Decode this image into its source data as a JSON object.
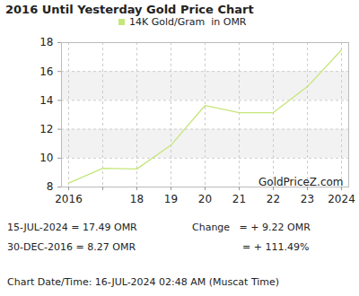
{
  "chart_data": {
    "type": "line",
    "title": "2016 Until Yesterday Gold Price Chart",
    "categories": [
      "2016",
      null,
      "18",
      "19",
      "20",
      "21",
      "22",
      "23",
      "2024"
    ],
    "series": [
      {
        "name": "14K Gold/Gram  in OMR",
        "color": "#c6e67a",
        "values": [
          8.27,
          9.3,
          9.25,
          10.9,
          13.65,
          13.15,
          13.15,
          14.95,
          17.49
        ]
      }
    ],
    "ylim": [
      8,
      18
    ],
    "yticks": [
      8,
      10,
      12,
      14,
      16,
      18
    ],
    "grid": true,
    "legend": "top",
    "annotations": [
      "GoldPriceZ.com",
      "15-JUL-2024 = 17.49 OMR",
      "30-DEC-2016 = 8.27 OMR",
      "Change   = + 9.22 OMR",
      "= + 111.49%",
      "Chart Date/Time: 16-JUL-2024 02:48 AM (Muscat Time)"
    ]
  }
}
